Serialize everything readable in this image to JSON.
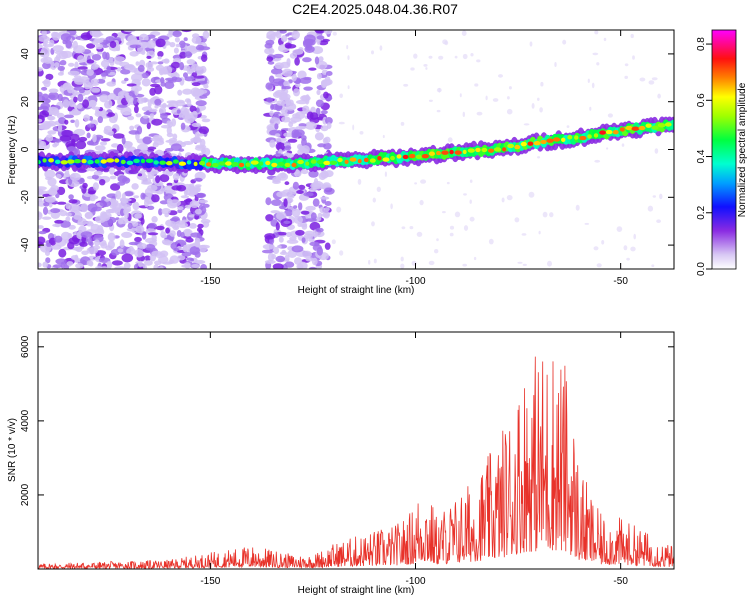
{
  "title": "C2E4.2025.048.04.36.R07",
  "chart_data": [
    {
      "type": "heatmap",
      "xlabel": "Height of straight line (km)",
      "ylabel": "Frequency (Hz)",
      "xlim": [
        -192,
        -37
      ],
      "ylim": [
        -50,
        50
      ],
      "x_ticks": [
        -150,
        -100,
        -50
      ],
      "y_ticks": [
        -40,
        -20,
        0,
        20,
        40
      ],
      "colorbar": {
        "label": "Normalized spectral amplitude",
        "range": [
          0,
          0.85
        ],
        "ticks": [
          0.0,
          0.2,
          0.4,
          0.6,
          0.8
        ],
        "colors": [
          "#ffffff",
          "#c8b4f0",
          "#8a2be2",
          "#0000ff",
          "#00c8ff",
          "#00ff80",
          "#80ff00",
          "#ffff00",
          "#ff8000",
          "#ff0000",
          "#ff00ff"
        ]
      },
      "ridge": {
        "x": [
          -192,
          -170,
          -150,
          -130,
          -120,
          -110,
          -100,
          -90,
          -80,
          -70,
          -60,
          -50,
          -40
        ],
        "y": [
          -5,
          -5,
          -6,
          -6,
          -5,
          -4,
          -3,
          -1,
          0,
          3,
          5,
          8,
          10
        ]
      },
      "noise_bands": [
        [
          -192,
          -151
        ],
        [
          -136,
          -121
        ]
      ]
    },
    {
      "type": "line",
      "xlabel": "Height of straight line (km)",
      "ylabel": "SNR (10 * v/v)",
      "xlim": [
        -192,
        -37
      ],
      "ylim": [
        0,
        6400
      ],
      "x_ticks": [
        -150,
        -100,
        -50
      ],
      "y_ticks": [
        2000,
        4000,
        6000
      ],
      "series": [
        {
          "color": "#e8322a",
          "envelope_x": [
            -192,
            -160,
            -155,
            -140,
            -130,
            -125,
            -120,
            -112,
            -105,
            -101,
            -98,
            -95,
            -90,
            -85,
            -80,
            -76,
            -73,
            -70,
            -66,
            -63,
            -60,
            -55,
            -50,
            -45,
            -40,
            -37
          ],
          "envelope_y": [
            150,
            250,
            350,
            650,
            400,
            400,
            700,
            1000,
            1200,
            1600,
            2500,
            1500,
            2000,
            2600,
            3500,
            4700,
            5800,
            6000,
            6300,
            5500,
            2800,
            1500,
            1400,
            1100,
            800,
            600
          ]
        }
      ]
    }
  ]
}
